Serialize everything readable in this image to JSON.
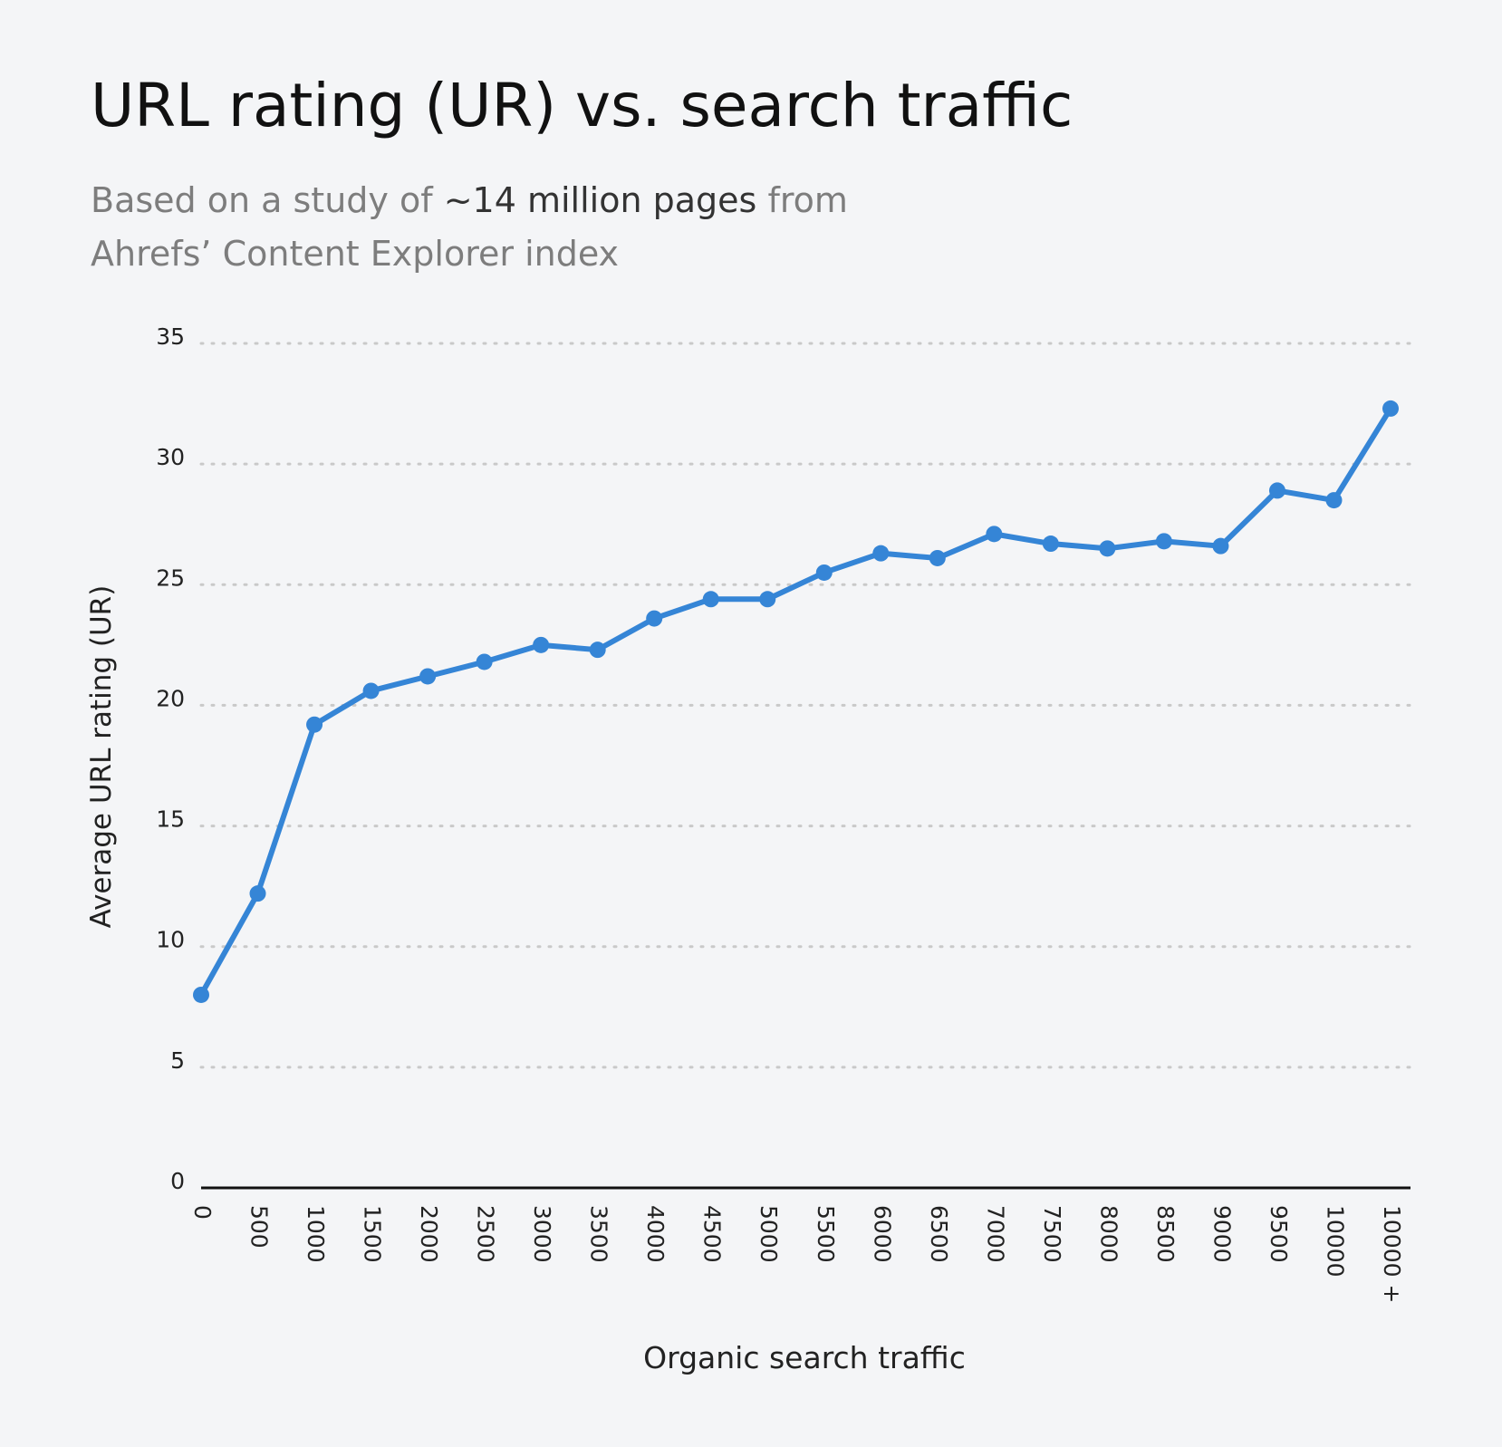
{
  "chart_data": {
    "type": "line",
    "title": "URL rating (UR) vs. search traffic",
    "subtitle": [
      "Based on a study of",
      "~14 million pages",
      "from",
      "Ahrefs’ Content Explorer index"
    ],
    "xlabel": "Organic search traffic",
    "ylabel": "Average URL rating (UR)",
    "categories": [
      "0",
      "500",
      "1000",
      "1500",
      "2000",
      "2500",
      "3000",
      "3500",
      "4000",
      "4500",
      "5000",
      "5500",
      "6000",
      "6500",
      "7000",
      "7500",
      "8000",
      "8500",
      "9000",
      "9500",
      "10000",
      "10000 +"
    ],
    "series": [
      {
        "name": "Average URL rating (UR)",
        "color": "#3585d6",
        "values": [
          8,
          12.2,
          19.2,
          20.6,
          21.2,
          21.8,
          22.5,
          22.3,
          23.6,
          24.4,
          24.4,
          25.5,
          26.3,
          26.1,
          27.1,
          26.7,
          26.5,
          26.8,
          26.6,
          28.9,
          28.5,
          32.3
        ]
      }
    ],
    "ylim": [
      0,
      35
    ],
    "yticks": [
      0,
      5,
      10,
      15,
      20,
      25,
      30,
      35
    ],
    "grid": true
  }
}
